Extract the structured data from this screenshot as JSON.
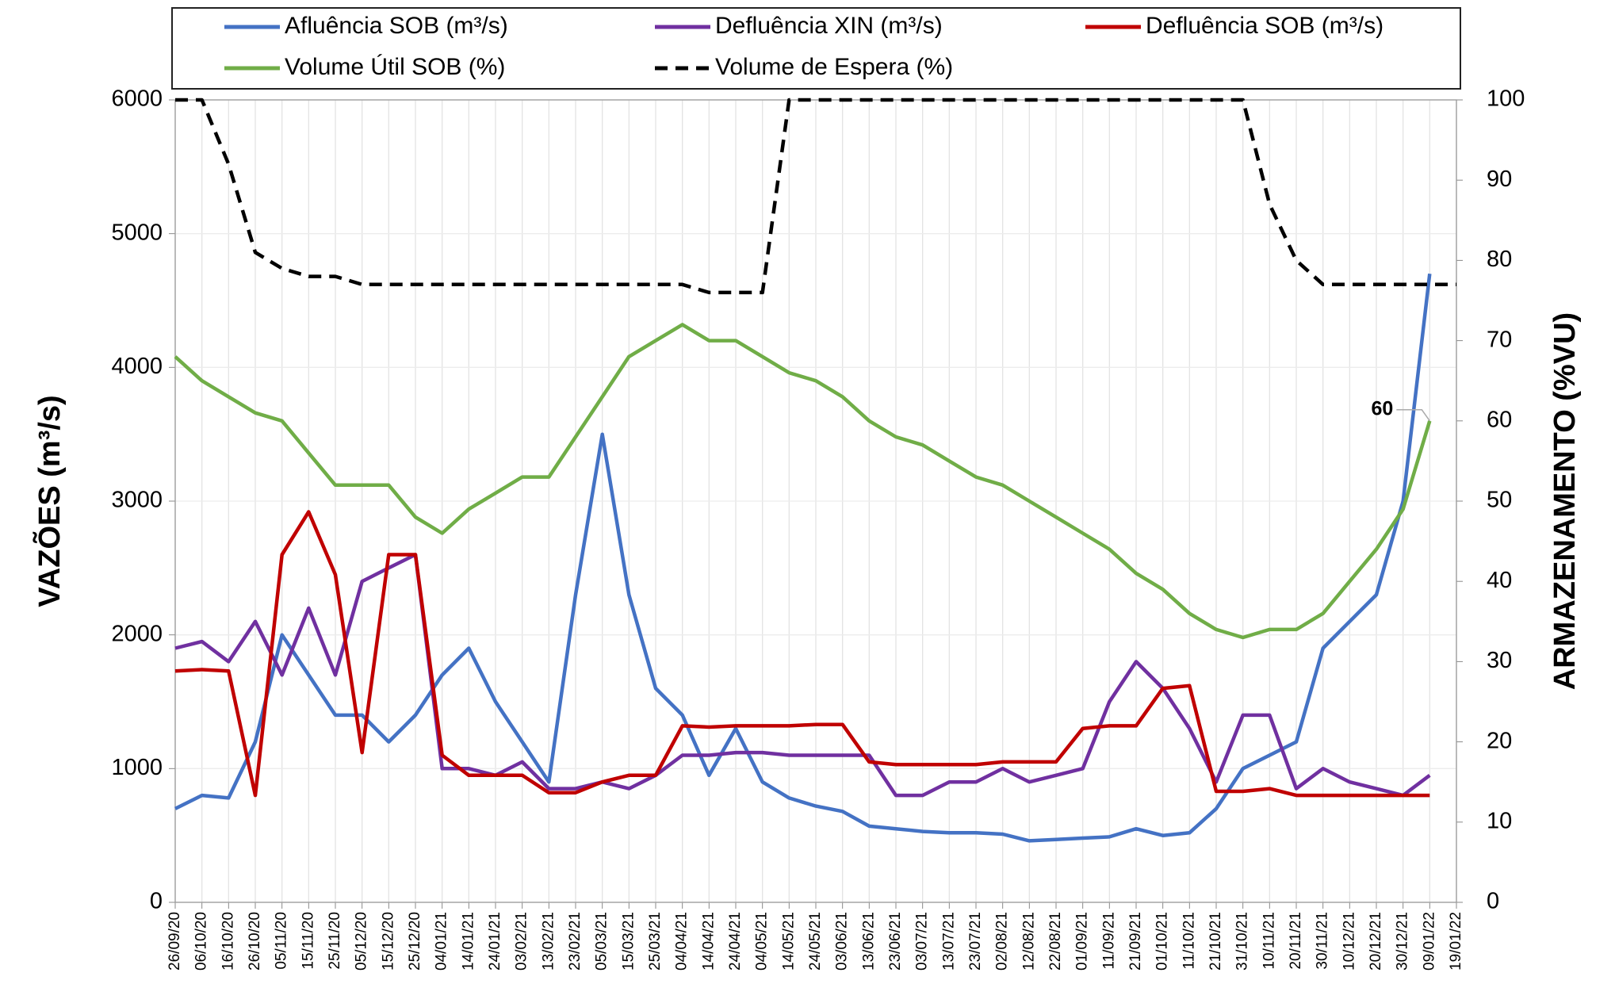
{
  "chart_data": {
    "type": "line",
    "y_label": "VAZÕES (m³/s)",
    "y2_label": "ARMAZENAMENTO (%VU)",
    "categories": [
      "26/09/20",
      "06/10/20",
      "16/10/20",
      "26/10/20",
      "05/11/20",
      "15/11/20",
      "25/11/20",
      "05/12/20",
      "15/12/20",
      "25/12/20",
      "04/01/21",
      "14/01/21",
      "24/01/21",
      "03/02/21",
      "13/02/21",
      "23/02/21",
      "05/03/21",
      "15/03/21",
      "25/03/21",
      "04/04/21",
      "14/04/21",
      "24/04/21",
      "04/05/21",
      "14/05/21",
      "24/05/21",
      "03/06/21",
      "13/06/21",
      "23/06/21",
      "03/07/21",
      "13/07/21",
      "23/07/21",
      "02/08/21",
      "12/08/21",
      "22/08/21",
      "01/09/21",
      "11/09/21",
      "21/09/21",
      "01/10/21",
      "11/10/21",
      "21/10/21",
      "31/10/21",
      "10/11/21",
      "20/11/21",
      "30/11/21",
      "10/12/21",
      "20/12/21",
      "30/12/21",
      "09/01/22",
      "19/01/22"
    ],
    "series": [
      {
        "name": "Afluência SOB (m³/s)",
        "color": "#4472c4",
        "values": [
          700,
          800,
          780,
          1200,
          2000,
          1700,
          1400,
          1400,
          1200,
          1400,
          1700,
          1900,
          1500,
          1200,
          900,
          2300,
          3500,
          2300,
          1600,
          1400,
          950,
          1300,
          900,
          780,
          720,
          680,
          570,
          550,
          530,
          520,
          520,
          510,
          460,
          470,
          480,
          490,
          550,
          500,
          520,
          700,
          1000,
          1100,
          1200,
          1900,
          2100,
          2300,
          3000,
          4700,
          null
        ]
      },
      {
        "name": "Defluência XIN (m³/s)",
        "color": "#7030a0",
        "values": [
          1900,
          1950,
          1800,
          2100,
          1700,
          2200,
          1700,
          2400,
          2500,
          2600,
          1000,
          1000,
          950,
          1050,
          850,
          850,
          900,
          850,
          950,
          1100,
          1100,
          1120,
          1120,
          1100,
          1100,
          1100,
          1100,
          800,
          800,
          900,
          900,
          1000,
          900,
          950,
          1000,
          1500,
          1800,
          1600,
          1300,
          900,
          1400,
          1400,
          850,
          1000,
          900,
          850,
          800,
          950,
          null
        ]
      },
      {
        "name": "Defluência SOB (m³/s)",
        "color": "#c00000",
        "values": [
          1730,
          1740,
          1730,
          800,
          2600,
          2920,
          2450,
          1120,
          2600,
          2600,
          1100,
          950,
          950,
          950,
          820,
          820,
          900,
          950,
          950,
          1320,
          1310,
          1320,
          1320,
          1320,
          1330,
          1330,
          1050,
          1030,
          1030,
          1030,
          1030,
          1050,
          1050,
          1050,
          1300,
          1320,
          1320,
          1600,
          1620,
          830,
          830,
          850,
          800,
          800,
          800,
          800,
          800,
          800,
          null
        ]
      },
      {
        "name": "Volume Útil SOB (%)",
        "color": "#70ad47",
        "axis": "y2",
        "values": [
          68,
          65,
          63,
          61,
          60,
          56,
          52,
          52,
          52,
          48,
          46,
          49,
          51,
          53,
          53,
          58,
          63,
          68,
          70,
          72,
          70,
          70,
          68,
          66,
          65,
          63,
          60,
          58,
          57,
          55,
          53,
          52,
          50,
          48,
          46,
          44,
          41,
          39,
          36,
          34,
          33,
          34,
          34,
          36,
          40,
          44,
          49,
          60,
          null
        ]
      },
      {
        "name": "Volume de Espera (%)",
        "color": "#000000",
        "axis": "y2",
        "dashed": true,
        "values": [
          100,
          100,
          92,
          81,
          79,
          78,
          78,
          77,
          77,
          77,
          77,
          77,
          77,
          77,
          77,
          77,
          77,
          77,
          77,
          77,
          76,
          76,
          76,
          100,
          100,
          100,
          100,
          100,
          100,
          100,
          100,
          100,
          100,
          100,
          100,
          100,
          100,
          100,
          100,
          100,
          100,
          87,
          80,
          77,
          77,
          77,
          77,
          77,
          77
        ]
      }
    ],
    "ylim": [
      0,
      6000
    ],
    "yticks": [
      0,
      1000,
      2000,
      3000,
      4000,
      5000,
      6000
    ],
    "y2lim": [
      0,
      100
    ],
    "y2ticks": [
      0,
      10,
      20,
      30,
      40,
      50,
      60,
      70,
      80,
      90,
      100
    ],
    "grid": true,
    "legend": "top"
  }
}
